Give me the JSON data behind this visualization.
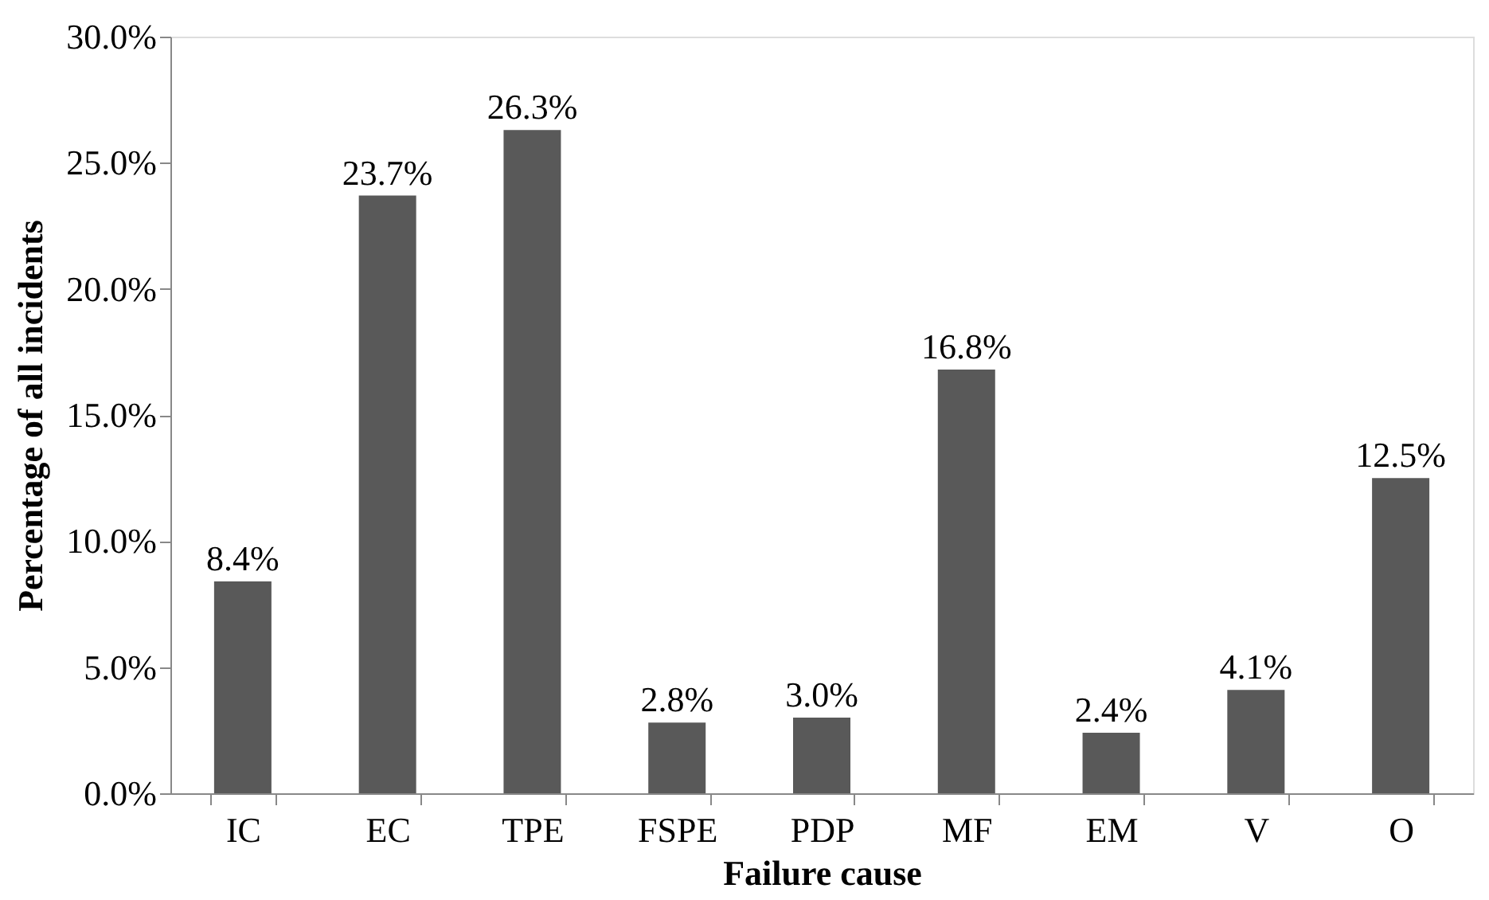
{
  "chart_data": {
    "type": "bar",
    "categories": [
      "IC",
      "EC",
      "TPE",
      "FSPE",
      "PDP",
      "MF",
      "EM",
      "V",
      "O"
    ],
    "values": [
      8.4,
      23.7,
      26.3,
      2.8,
      3.0,
      16.8,
      2.4,
      4.1,
      12.5
    ],
    "value_labels": [
      "8.4%",
      "23.7%",
      "26.3%",
      "2.8%",
      "3.0%",
      "16.8%",
      "2.4%",
      "4.1%",
      "12.5%"
    ],
    "color": "#595959",
    "xlabel": "Failure cause",
    "ylabel": "Percentage of all incidents",
    "ylim": [
      0,
      30
    ],
    "yticks": [
      {
        "value": 0,
        "label": "0.0%"
      },
      {
        "value": 5,
        "label": "5.0%"
      },
      {
        "value": 10,
        "label": "10.0%"
      },
      {
        "value": 15,
        "label": "15.0%"
      },
      {
        "value": 20,
        "label": "20.0%"
      },
      {
        "value": 25,
        "label": "25.0%"
      },
      {
        "value": 30,
        "label": "30.0%"
      }
    ],
    "grid": false
  }
}
